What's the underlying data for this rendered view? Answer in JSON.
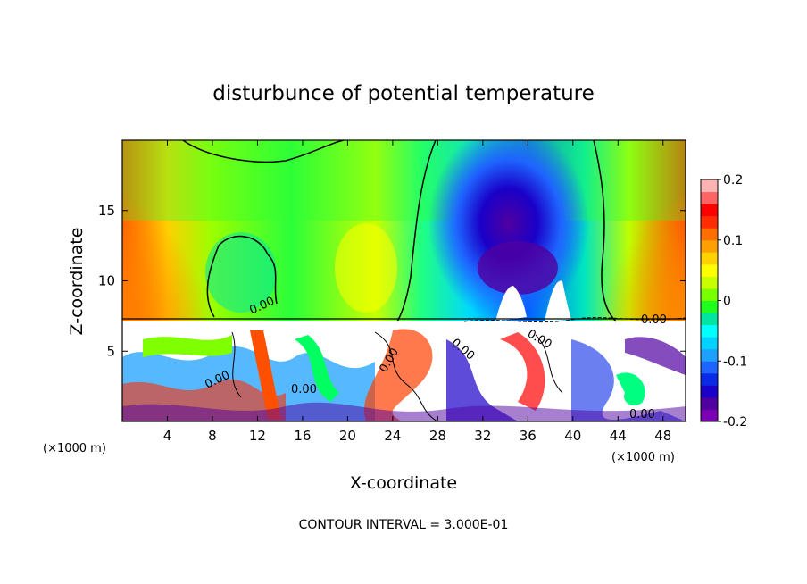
{
  "chart_data": {
    "type": "heatmap",
    "title": "disturbunce of potential temperature",
    "xlabel": "X-coordinate",
    "ylabel": "Z-coordinate",
    "x_unit_left": "(×1000 m)",
    "x_unit_right": "(×1000 m)",
    "xlim": [
      0,
      50
    ],
    "ylim": [
      0,
      20
    ],
    "xticks": [
      4,
      8,
      12,
      16,
      20,
      24,
      28,
      32,
      36,
      40,
      44,
      48
    ],
    "yticks": [
      5,
      10,
      15
    ],
    "footer": "CONTOUR INTERVAL = 3.000E-01",
    "contour_labels": [
      "0.00",
      "0.00",
      "0.00",
      "0.00",
      "0.00",
      "0.00",
      "0.00",
      "0.00"
    ],
    "colorbar": {
      "range": [
        -0.2,
        0.2
      ],
      "tick_labels": [
        "0.2",
        "0.1",
        "0",
        "-0.1",
        "-0.2"
      ],
      "tick_values": [
        0.2,
        0.1,
        0,
        -0.1,
        -0.2
      ],
      "colors": [
        "#7b00b4",
        "#5000a0",
        "#1a00c8",
        "#0a2ae6",
        "#1e64ff",
        "#1ea0ff",
        "#00d2ff",
        "#00ffff",
        "#00e6a0",
        "#1eff1e",
        "#78ff00",
        "#c8ff00",
        "#ffff00",
        "#ffd200",
        "#ffa000",
        "#ff6e00",
        "#ff2d00",
        "#ff0000",
        "#ff6464",
        "#ffb4b4"
      ]
    }
  }
}
